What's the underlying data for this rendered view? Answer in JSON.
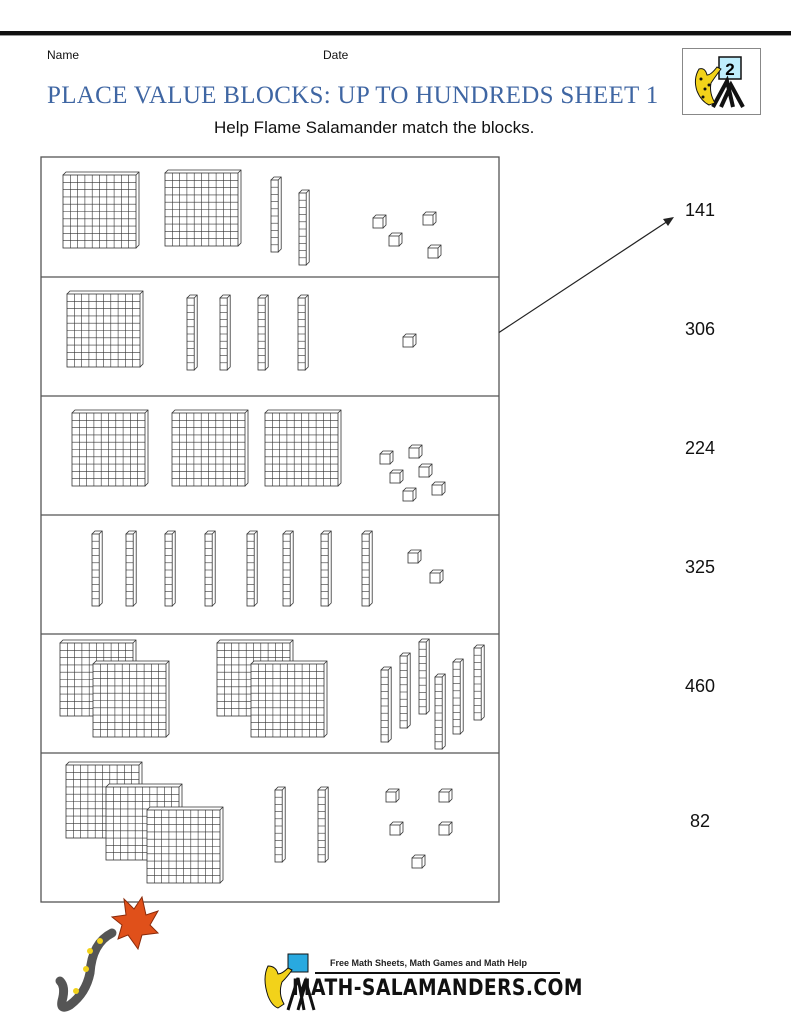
{
  "header": {
    "name_label": "Name",
    "date_label": "Date",
    "title": "PLACE VALUE BLOCKS: UP TO HUNDREDS SHEET 1",
    "instructions": "Help Flame Salamander match the blocks.",
    "logo_badge": "2"
  },
  "rows": [
    {
      "hundreds": 2,
      "tens": 2,
      "ones": 4
    },
    {
      "hundreds": 1,
      "tens": 4,
      "ones": 1
    },
    {
      "hundreds": 3,
      "tens": 0,
      "ones": 6
    },
    {
      "hundreds": 0,
      "tens": 8,
      "ones": 2
    },
    {
      "hundreds": 4,
      "tens": 6,
      "ones": 0
    },
    {
      "hundreds": 3,
      "tens": 2,
      "ones": 5
    }
  ],
  "answers": [
    "141",
    "306",
    "224",
    "325",
    "460",
    "82"
  ],
  "example_match": {
    "from_row": 2,
    "to_answer": "141"
  },
  "footer": {
    "tagline": "Free Math Sheets, Math Games and Math Help",
    "site": "MATH-SALAMANDERS.COM"
  },
  "colors": {
    "title": "#3f66a3",
    "salamander": "#f2d21a",
    "flame": "#e0501a"
  }
}
